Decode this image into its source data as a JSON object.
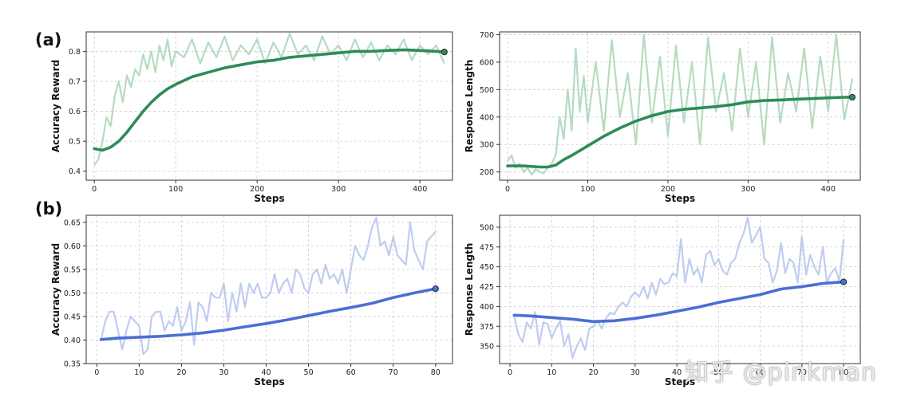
{
  "labels": {
    "panel_a": "(a)",
    "panel_b": "(b)"
  },
  "watermark": "知乎 @pinkman",
  "colors": {
    "green_line": "#2e8b57",
    "green_raw": "#a8d5b5",
    "blue_line": "#4a6fd4",
    "blue_raw": "#b3c4ec",
    "grid": "#cccccc",
    "end_marker_edge": "#1f2d2d"
  },
  "chart_data": [
    {
      "id": "a-left",
      "type": "line",
      "xlabel": "Steps",
      "ylabel": "Accuracy Reward",
      "xlim": [
        -10,
        440
      ],
      "ylim": [
        0.37,
        0.865
      ],
      "xticks": [
        0,
        100,
        200,
        300,
        400
      ],
      "yticks": [
        0.4,
        0.5,
        0.6,
        0.7,
        0.8
      ],
      "ytick_labels": [
        "0.4",
        "0.5",
        "0.6",
        "0.7",
        "0.8"
      ],
      "series": [
        {
          "name": "raw",
          "x": [
            0,
            5,
            10,
            15,
            20,
            25,
            30,
            35,
            40,
            45,
            50,
            55,
            60,
            65,
            70,
            75,
            80,
            85,
            90,
            95,
            100,
            110,
            120,
            130,
            140,
            150,
            160,
            170,
            180,
            190,
            200,
            210,
            220,
            230,
            240,
            250,
            260,
            270,
            280,
            290,
            300,
            310,
            320,
            330,
            340,
            350,
            360,
            370,
            380,
            390,
            400,
            410,
            420,
            430
          ],
          "values": [
            0.42,
            0.44,
            0.5,
            0.58,
            0.55,
            0.65,
            0.7,
            0.63,
            0.72,
            0.68,
            0.74,
            0.72,
            0.79,
            0.74,
            0.8,
            0.73,
            0.82,
            0.77,
            0.84,
            0.75,
            0.8,
            0.78,
            0.84,
            0.76,
            0.83,
            0.78,
            0.85,
            0.77,
            0.82,
            0.79,
            0.84,
            0.76,
            0.83,
            0.78,
            0.86,
            0.79,
            0.82,
            0.77,
            0.85,
            0.79,
            0.82,
            0.77,
            0.84,
            0.78,
            0.83,
            0.77,
            0.82,
            0.79,
            0.84,
            0.77,
            0.82,
            0.79,
            0.82,
            0.76
          ]
        },
        {
          "name": "smoothed",
          "x": [
            0,
            10,
            20,
            30,
            40,
            50,
            60,
            70,
            80,
            90,
            100,
            120,
            140,
            160,
            180,
            200,
            220,
            240,
            260,
            280,
            300,
            320,
            340,
            360,
            380,
            400,
            420,
            430
          ],
          "values": [
            0.475,
            0.47,
            0.48,
            0.5,
            0.53,
            0.565,
            0.6,
            0.63,
            0.655,
            0.675,
            0.69,
            0.715,
            0.73,
            0.745,
            0.755,
            0.765,
            0.77,
            0.78,
            0.785,
            0.79,
            0.795,
            0.8,
            0.8,
            0.803,
            0.805,
            0.803,
            0.8,
            0.798
          ]
        }
      ]
    },
    {
      "id": "a-right",
      "type": "line",
      "xlabel": "Steps",
      "ylabel": "Response Length",
      "xlim": [
        -10,
        440
      ],
      "ylim": [
        170,
        710
      ],
      "xticks": [
        0,
        100,
        200,
        300,
        400
      ],
      "yticks": [
        200,
        300,
        400,
        500,
        600,
        700
      ],
      "ytick_labels": [
        "200",
        "300",
        "400",
        "500",
        "600",
        "700"
      ],
      "series": [
        {
          "name": "raw",
          "x": [
            0,
            5,
            10,
            15,
            20,
            25,
            30,
            35,
            40,
            45,
            50,
            55,
            60,
            65,
            70,
            75,
            80,
            85,
            90,
            95,
            100,
            110,
            120,
            130,
            140,
            150,
            160,
            170,
            180,
            190,
            200,
            210,
            220,
            230,
            240,
            250,
            260,
            270,
            280,
            290,
            300,
            310,
            320,
            330,
            340,
            350,
            360,
            370,
            380,
            390,
            400,
            410,
            420,
            430
          ],
          "values": [
            240,
            260,
            215,
            230,
            200,
            215,
            190,
            210,
            200,
            195,
            215,
            230,
            260,
            400,
            320,
            500,
            350,
            650,
            420,
            550,
            380,
            600,
            350,
            680,
            400,
            560,
            300,
            700,
            380,
            620,
            330,
            660,
            380,
            600,
            300,
            690,
            420,
            560,
            350,
            650,
            400,
            600,
            300,
            690,
            380,
            560,
            420,
            650,
            360,
            620,
            420,
            700,
            390,
            540
          ]
        },
        {
          "name": "smoothed",
          "x": [
            0,
            20,
            40,
            50,
            60,
            70,
            80,
            100,
            120,
            140,
            160,
            180,
            200,
            220,
            240,
            260,
            280,
            300,
            320,
            340,
            360,
            380,
            400,
            420,
            430
          ],
          "values": [
            222,
            222,
            218,
            218,
            225,
            245,
            260,
            295,
            330,
            360,
            385,
            405,
            420,
            428,
            433,
            438,
            445,
            455,
            460,
            462,
            465,
            467,
            470,
            472,
            472
          ]
        }
      ]
    },
    {
      "id": "b-left",
      "type": "line",
      "xlabel": "Steps",
      "ylabel": "Accuracy Reward",
      "xlim": [
        -2.5,
        84
      ],
      "ylim": [
        0.35,
        0.665
      ],
      "xticks": [
        0,
        10,
        20,
        30,
        40,
        50,
        60,
        70,
        80
      ],
      "yticks": [
        0.35,
        0.4,
        0.45,
        0.5,
        0.55,
        0.6,
        0.65
      ],
      "ytick_labels": [
        "0.35",
        "0.40",
        "0.45",
        "0.50",
        "0.55",
        "0.60",
        "0.65"
      ],
      "series": [
        {
          "name": "raw",
          "x": [
            1,
            2,
            3,
            4,
            5,
            6,
            7,
            8,
            9,
            10,
            11,
            12,
            13,
            14,
            15,
            16,
            17,
            18,
            19,
            20,
            21,
            22,
            23,
            24,
            25,
            26,
            27,
            28,
            29,
            30,
            31,
            32,
            33,
            34,
            35,
            36,
            37,
            38,
            39,
            40,
            41,
            42,
            43,
            44,
            45,
            46,
            47,
            48,
            49,
            50,
            51,
            52,
            53,
            54,
            55,
            56,
            57,
            58,
            59,
            60,
            61,
            62,
            63,
            64,
            65,
            66,
            67,
            68,
            69,
            70,
            71,
            72,
            73,
            74,
            75,
            76,
            77,
            78,
            79,
            80
          ],
          "values": [
            0.4,
            0.44,
            0.46,
            0.46,
            0.42,
            0.38,
            0.42,
            0.45,
            0.44,
            0.43,
            0.37,
            0.38,
            0.45,
            0.46,
            0.46,
            0.42,
            0.44,
            0.43,
            0.47,
            0.42,
            0.44,
            0.48,
            0.39,
            0.48,
            0.47,
            0.44,
            0.5,
            0.49,
            0.49,
            0.52,
            0.44,
            0.5,
            0.46,
            0.52,
            0.47,
            0.52,
            0.5,
            0.52,
            0.49,
            0.49,
            0.5,
            0.54,
            0.5,
            0.52,
            0.53,
            0.5,
            0.55,
            0.54,
            0.51,
            0.5,
            0.54,
            0.55,
            0.52,
            0.56,
            0.53,
            0.54,
            0.52,
            0.55,
            0.5,
            0.55,
            0.6,
            0.58,
            0.57,
            0.6,
            0.64,
            0.66,
            0.6,
            0.61,
            0.58,
            0.62,
            0.58,
            0.57,
            0.56,
            0.65,
            0.59,
            0.57,
            0.55,
            0.61,
            0.62,
            0.63
          ]
        },
        {
          "name": "smoothed",
          "x": [
            1,
            5,
            10,
            15,
            20,
            25,
            30,
            35,
            40,
            45,
            50,
            55,
            60,
            65,
            70,
            75,
            80
          ],
          "values": [
            0.401,
            0.404,
            0.406,
            0.408,
            0.411,
            0.415,
            0.421,
            0.428,
            0.435,
            0.443,
            0.452,
            0.461,
            0.469,
            0.478,
            0.49,
            0.5,
            0.509
          ]
        }
      ]
    },
    {
      "id": "b-right",
      "type": "line",
      "xlabel": "Steps",
      "ylabel": "Response Length",
      "xlim": [
        -2.5,
        84
      ],
      "ylim": [
        328,
        515
      ],
      "xticks": [
        0,
        10,
        20,
        30,
        40,
        50,
        60,
        70,
        80
      ],
      "yticks": [
        350,
        375,
        400,
        425,
        450,
        475,
        500
      ],
      "ytick_labels": [
        "350",
        "375",
        "400",
        "425",
        "450",
        "475",
        "500"
      ],
      "series": [
        {
          "name": "raw",
          "x": [
            1,
            2,
            3,
            4,
            5,
            6,
            7,
            8,
            9,
            10,
            11,
            12,
            13,
            14,
            15,
            16,
            17,
            18,
            19,
            20,
            21,
            22,
            23,
            24,
            25,
            26,
            27,
            28,
            29,
            30,
            31,
            32,
            33,
            34,
            35,
            36,
            37,
            38,
            39,
            40,
            41,
            42,
            43,
            44,
            45,
            46,
            47,
            48,
            49,
            50,
            51,
            52,
            53,
            54,
            55,
            56,
            57,
            58,
            59,
            60,
            61,
            62,
            63,
            64,
            65,
            66,
            67,
            68,
            69,
            70,
            71,
            72,
            73,
            74,
            75,
            76,
            77,
            78,
            79,
            80
          ],
          "values": [
            388,
            365,
            355,
            380,
            372,
            393,
            352,
            380,
            378,
            360,
            372,
            382,
            350,
            365,
            335,
            350,
            360,
            345,
            372,
            375,
            382,
            372,
            385,
            392,
            390,
            400,
            405,
            400,
            412,
            418,
            412,
            425,
            410,
            430,
            415,
            435,
            428,
            430,
            442,
            438,
            485,
            430,
            460,
            440,
            448,
            430,
            465,
            470,
            452,
            460,
            445,
            440,
            455,
            460,
            480,
            492,
            512,
            480,
            490,
            500,
            460,
            455,
            430,
            445,
            480,
            442,
            460,
            455,
            430,
            488,
            440,
            465,
            450,
            440,
            475,
            430,
            442,
            448,
            432,
            485
          ]
        },
        {
          "name": "smoothed",
          "x": [
            1,
            5,
            10,
            15,
            20,
            25,
            30,
            35,
            40,
            45,
            50,
            55,
            60,
            65,
            70,
            75,
            80
          ],
          "values": [
            389,
            388,
            386,
            384,
            381,
            382,
            385,
            389,
            394,
            399,
            405,
            410,
            415,
            422,
            425,
            429,
            431
          ]
        }
      ]
    }
  ]
}
